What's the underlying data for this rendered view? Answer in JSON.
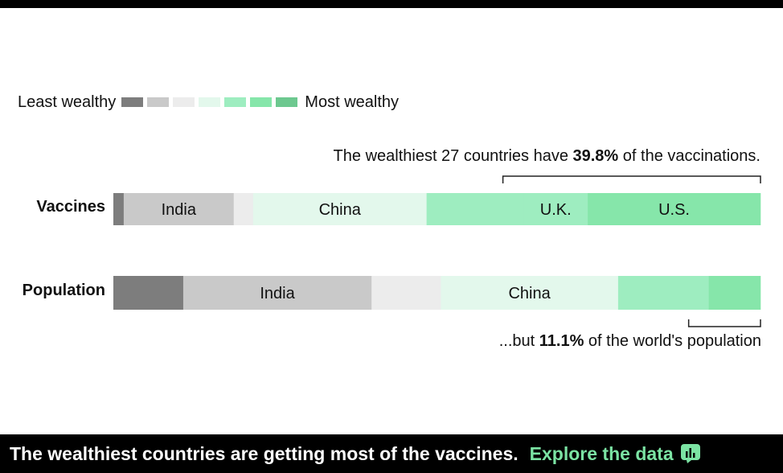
{
  "legend": {
    "least_label": "Least wealthy",
    "most_label": "Most wealthy",
    "colors": [
      "#7d7d7d",
      "#c9c9c9",
      "#ececec",
      "#e3f8ec",
      "#9eedc0",
      "#86e6aa",
      "#6dc88f"
    ]
  },
  "annotations": {
    "top_pre": "The wealthiest 27 countries have ",
    "top_bold": "39.8%",
    "top_post": " of the vaccinations.",
    "bottom_pre": "...but ",
    "bottom_bold": "11.1%",
    "bottom_post": " of the world's population"
  },
  "footer": {
    "headline": "The wealthiest countries are getting most of the vaccines.",
    "link": "Explore the data",
    "link_icon": "bar-chart-icon"
  },
  "chart_data": {
    "type": "stacked-bar",
    "unit": "percent of total",
    "series": [
      {
        "name": "Vaccines",
        "segments": [
          {
            "label": "",
            "group": 1,
            "value": 1.6
          },
          {
            "label": "India",
            "group": 2,
            "value": 17.0
          },
          {
            "label": "",
            "group": 3,
            "value": 3.0
          },
          {
            "label": "China",
            "group": 4,
            "value": 26.8
          },
          {
            "label": "",
            "group": 5,
            "value": 15.0
          },
          {
            "label": "U.K.",
            "group": 5,
            "value": 9.9
          },
          {
            "label": "U.S.",
            "group": 6,
            "value": 26.7
          }
        ]
      },
      {
        "name": "Population",
        "segments": [
          {
            "label": "",
            "group": 1,
            "value": 10.8
          },
          {
            "label": "India",
            "group": 2,
            "value": 29.1
          },
          {
            "label": "",
            "group": 3,
            "value": 10.7
          },
          {
            "label": "China",
            "group": 4,
            "value": 27.4
          },
          {
            "label": "",
            "group": 5,
            "value": 14.0
          },
          {
            "label": "",
            "group": 6,
            "value": 8.0
          }
        ]
      }
    ],
    "highlight": {
      "top_share": 39.8,
      "bottom_share": 11.1
    }
  }
}
